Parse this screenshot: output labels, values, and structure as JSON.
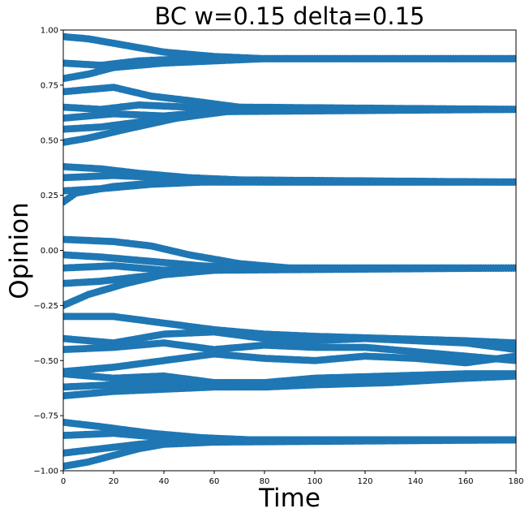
{
  "chart_data": {
    "type": "scatter",
    "title": "BC w=0.15 delta=0.15",
    "xlabel": "Time",
    "ylabel": "Opinion",
    "xlim": [
      0,
      180
    ],
    "ylim": [
      -1.0,
      1.0
    ],
    "xticks": [
      0,
      20,
      40,
      60,
      80,
      100,
      120,
      140,
      160,
      180
    ],
    "yticks": [
      -1.0,
      -0.75,
      -0.5,
      -0.25,
      0.0,
      0.25,
      0.5,
      0.75,
      1.0
    ],
    "xtick_labels": [
      "0",
      "20",
      "40",
      "60",
      "80",
      "100",
      "120",
      "140",
      "160",
      "180"
    ],
    "ytick_labels": [
      "−1.00",
      "−0.75",
      "−0.50",
      "−0.25",
      "0.00",
      "0.25",
      "0.50",
      "0.75",
      "1.00"
    ],
    "grid": false,
    "marker_color": "#1f77b4",
    "series": [
      {
        "x": [
          0,
          10,
          25,
          40,
          60,
          80,
          180
        ],
        "y": [
          0.97,
          0.96,
          0.93,
          0.9,
          0.88,
          0.87,
          0.87
        ]
      },
      {
        "x": [
          0,
          15,
          30,
          50,
          70,
          90,
          180
        ],
        "y": [
          0.85,
          0.84,
          0.86,
          0.87,
          0.87,
          0.87,
          0.87
        ]
      },
      {
        "x": [
          0,
          10,
          20,
          40,
          60,
          80,
          180
        ],
        "y": [
          0.78,
          0.8,
          0.83,
          0.85,
          0.86,
          0.87,
          0.87
        ]
      },
      {
        "x": [
          0,
          20,
          35,
          50,
          70,
          180
        ],
        "y": [
          0.72,
          0.74,
          0.7,
          0.68,
          0.65,
          0.64
        ]
      },
      {
        "x": [
          0,
          15,
          30,
          50,
          70,
          90,
          180
        ],
        "y": [
          0.65,
          0.64,
          0.66,
          0.65,
          0.64,
          0.64,
          0.64
        ]
      },
      {
        "x": [
          0,
          20,
          40,
          60,
          80,
          180
        ],
        "y": [
          0.6,
          0.62,
          0.61,
          0.63,
          0.64,
          0.64
        ]
      },
      {
        "x": [
          0,
          15,
          35,
          55,
          75,
          180
        ],
        "y": [
          0.55,
          0.56,
          0.59,
          0.62,
          0.64,
          0.64
        ]
      },
      {
        "x": [
          0,
          10,
          25,
          45,
          65,
          180
        ],
        "y": [
          0.49,
          0.51,
          0.55,
          0.6,
          0.63,
          0.64
        ]
      },
      {
        "x": [
          0,
          15,
          30,
          50,
          70,
          180
        ],
        "y": [
          0.38,
          0.37,
          0.35,
          0.33,
          0.32,
          0.31
        ]
      },
      {
        "x": [
          0,
          20,
          40,
          60,
          80,
          180
        ],
        "y": [
          0.33,
          0.34,
          0.33,
          0.32,
          0.31,
          0.31
        ]
      },
      {
        "x": [
          0,
          15,
          35,
          55,
          75,
          180
        ],
        "y": [
          0.27,
          0.28,
          0.3,
          0.31,
          0.31,
          0.31
        ]
      },
      {
        "x": [
          0,
          5,
          20,
          40,
          60,
          180
        ],
        "y": [
          0.22,
          0.26,
          0.29,
          0.31,
          0.31,
          0.31
        ]
      },
      {
        "x": [
          0,
          20,
          35,
          50,
          70,
          90,
          180
        ],
        "y": [
          0.05,
          0.04,
          0.02,
          -0.02,
          -0.06,
          -0.08,
          -0.08
        ]
      },
      {
        "x": [
          0,
          15,
          35,
          55,
          75,
          180
        ],
        "y": [
          -0.02,
          -0.03,
          -0.05,
          -0.07,
          -0.08,
          -0.08
        ]
      },
      {
        "x": [
          0,
          20,
          40,
          60,
          80,
          180
        ],
        "y": [
          -0.08,
          -0.07,
          -0.09,
          -0.08,
          -0.08,
          -0.08
        ]
      },
      {
        "x": [
          0,
          15,
          30,
          50,
          70,
          180
        ],
        "y": [
          -0.15,
          -0.14,
          -0.12,
          -0.1,
          -0.08,
          -0.08
        ]
      },
      {
        "x": [
          0,
          10,
          25,
          40,
          60,
          180
        ],
        "y": [
          -0.25,
          -0.2,
          -0.15,
          -0.11,
          -0.09,
          -0.08
        ]
      },
      {
        "x": [
          0,
          20,
          40,
          60,
          80,
          100,
          130,
          160,
          180
        ],
        "y": [
          -0.3,
          -0.3,
          -0.33,
          -0.36,
          -0.38,
          -0.39,
          -0.4,
          -0.41,
          -0.42
        ]
      },
      {
        "x": [
          0,
          20,
          40,
          60,
          80,
          100,
          120,
          140,
          160,
          180
        ],
        "y": [
          -0.4,
          -0.42,
          -0.38,
          -0.37,
          -0.4,
          -0.41,
          -0.4,
          -0.41,
          -0.42,
          -0.45
        ]
      },
      {
        "x": [
          0,
          20,
          40,
          60,
          80,
          100,
          120,
          140,
          160,
          180
        ],
        "y": [
          -0.45,
          -0.44,
          -0.42,
          -0.45,
          -0.43,
          -0.44,
          -0.44,
          -0.46,
          -0.48,
          -0.5
        ]
      },
      {
        "x": [
          0,
          20,
          40,
          60,
          80,
          100,
          120,
          140,
          160,
          180
        ],
        "y": [
          -0.55,
          -0.53,
          -0.5,
          -0.47,
          -0.49,
          -0.5,
          -0.48,
          -0.49,
          -0.51,
          -0.48
        ]
      },
      {
        "x": [
          0,
          20,
          40,
          60,
          80,
          100,
          130,
          160,
          180
        ],
        "y": [
          -0.56,
          -0.58,
          -0.57,
          -0.6,
          -0.6,
          -0.58,
          -0.57,
          -0.56,
          -0.56
        ]
      },
      {
        "x": [
          0,
          20,
          40,
          60,
          80,
          100,
          130,
          160,
          180
        ],
        "y": [
          -0.62,
          -0.61,
          -0.6,
          -0.61,
          -0.61,
          -0.6,
          -0.59,
          -0.58,
          -0.57
        ]
      },
      {
        "x": [
          0,
          20,
          40,
          60,
          80,
          100,
          130,
          160,
          180
        ],
        "y": [
          -0.66,
          -0.64,
          -0.63,
          -0.62,
          -0.62,
          -0.61,
          -0.6,
          -0.58,
          -0.57
        ]
      },
      {
        "x": [
          0,
          15,
          35,
          55,
          75,
          180
        ],
        "y": [
          -0.78,
          -0.8,
          -0.83,
          -0.85,
          -0.86,
          -0.86
        ]
      },
      {
        "x": [
          0,
          20,
          40,
          60,
          80,
          180
        ],
        "y": [
          -0.84,
          -0.83,
          -0.85,
          -0.86,
          -0.86,
          -0.86
        ]
      },
      {
        "x": [
          0,
          15,
          30,
          50,
          70,
          180
        ],
        "y": [
          -0.92,
          -0.9,
          -0.88,
          -0.86,
          -0.86,
          -0.86
        ]
      },
      {
        "x": [
          0,
          10,
          20,
          30,
          40,
          60,
          180
        ],
        "y": [
          -0.98,
          -0.96,
          -0.93,
          -0.9,
          -0.88,
          -0.87,
          -0.86
        ]
      }
    ]
  }
}
